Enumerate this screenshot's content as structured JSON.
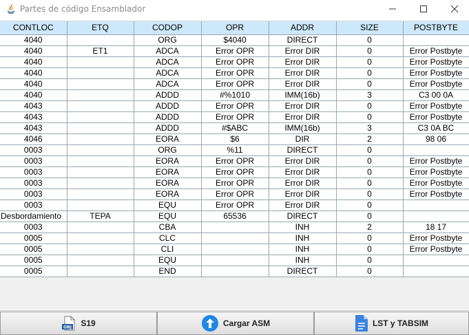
{
  "window": {
    "title": "Partes de código Ensamblador"
  },
  "controls": {
    "minimize": "minimize",
    "maximize": "maximize",
    "close": "close"
  },
  "table": {
    "columns": [
      "CONTLOC",
      "ETQ",
      "CODOP",
      "OPR",
      "ADDR",
      "SIZE",
      "POSTBYTE"
    ],
    "rows": [
      [
        "4040",
        "",
        "ORG",
        "$4040",
        "DIRECT",
        "0",
        ""
      ],
      [
        "4040",
        "ET1",
        "ADCA",
        "Error OPR",
        "Error DIR",
        "0",
        "Error Postbyte"
      ],
      [
        "4040",
        "",
        "ADCA",
        "Error OPR",
        "Error DIR",
        "0",
        "Error Postbyte"
      ],
      [
        "4040",
        "",
        "ADCA",
        "Error OPR",
        "Error DIR",
        "0",
        "Error Postbyte"
      ],
      [
        "4040",
        "",
        "ADCA",
        "Error OPR",
        "Error DIR",
        "0",
        "Error Postbyte"
      ],
      [
        "4040",
        "",
        "ADDD",
        "#%1010",
        "IMM(16b)",
        "3",
        "C3 00 0A"
      ],
      [
        "4043",
        "",
        "ADDD",
        "Error OPR",
        "Error DIR",
        "0",
        "Error Postbyte"
      ],
      [
        "4043",
        "",
        "ADDD",
        "Error OPR",
        "Error DIR",
        "0",
        "Error Postbyte"
      ],
      [
        "4043",
        "",
        "ADDD",
        "#$ABC",
        "IMM(16b)",
        "3",
        "C3 0A BC"
      ],
      [
        "4046",
        "",
        "EORA",
        "$6",
        "DIR",
        "2",
        "98 06"
      ],
      [
        "0003",
        "",
        "ORG",
        "%11",
        "DIRECT",
        "0",
        ""
      ],
      [
        "0003",
        "",
        "EORA",
        "Error OPR",
        "Error DIR",
        "0",
        "Error Postbyte"
      ],
      [
        "0003",
        "",
        "EORA",
        "Error OPR",
        "Error DIR",
        "0",
        "Error Postbyte"
      ],
      [
        "0003",
        "",
        "EORA",
        "Error OPR",
        "Error DIR",
        "0",
        "Error Postbyte"
      ],
      [
        "0003",
        "",
        "EORA",
        "Error OPR",
        "Error DIR",
        "0",
        "Error Postbyte"
      ],
      [
        "0003",
        "",
        "EQU",
        "Error OPR",
        "Error DIR",
        "0",
        ""
      ],
      [
        "Desbordamiento",
        "TEPA",
        "EQU",
        "65536",
        "DIRECT",
        "0",
        ""
      ],
      [
        "0003",
        "",
        "CBA",
        "",
        "INH",
        "2",
        "18 17"
      ],
      [
        "0005",
        "",
        "CLC",
        "",
        "INH",
        "0",
        "Error Postbyte"
      ],
      [
        "0005",
        "",
        "CLI",
        "",
        "INH",
        "0",
        "Error Postbyte"
      ],
      [
        "0005",
        "",
        "EQU",
        "",
        "INH",
        "0",
        ""
      ],
      [
        "0005",
        "",
        "END",
        "",
        "DIRECT",
        "0",
        ""
      ]
    ]
  },
  "buttons": {
    "s19": {
      "label": "S19",
      "icon": "obj-file-icon",
      "icon_text": "OBJ"
    },
    "load": {
      "label": "Cargar ASM",
      "icon": "upload-arrow-icon"
    },
    "lst": {
      "label": "LST y TABSIM",
      "icon": "document-icon"
    }
  },
  "colors": {
    "header_bg": "#cde8fb",
    "grid": "#9aa6b2",
    "accent_blue": "#1e88e5"
  }
}
